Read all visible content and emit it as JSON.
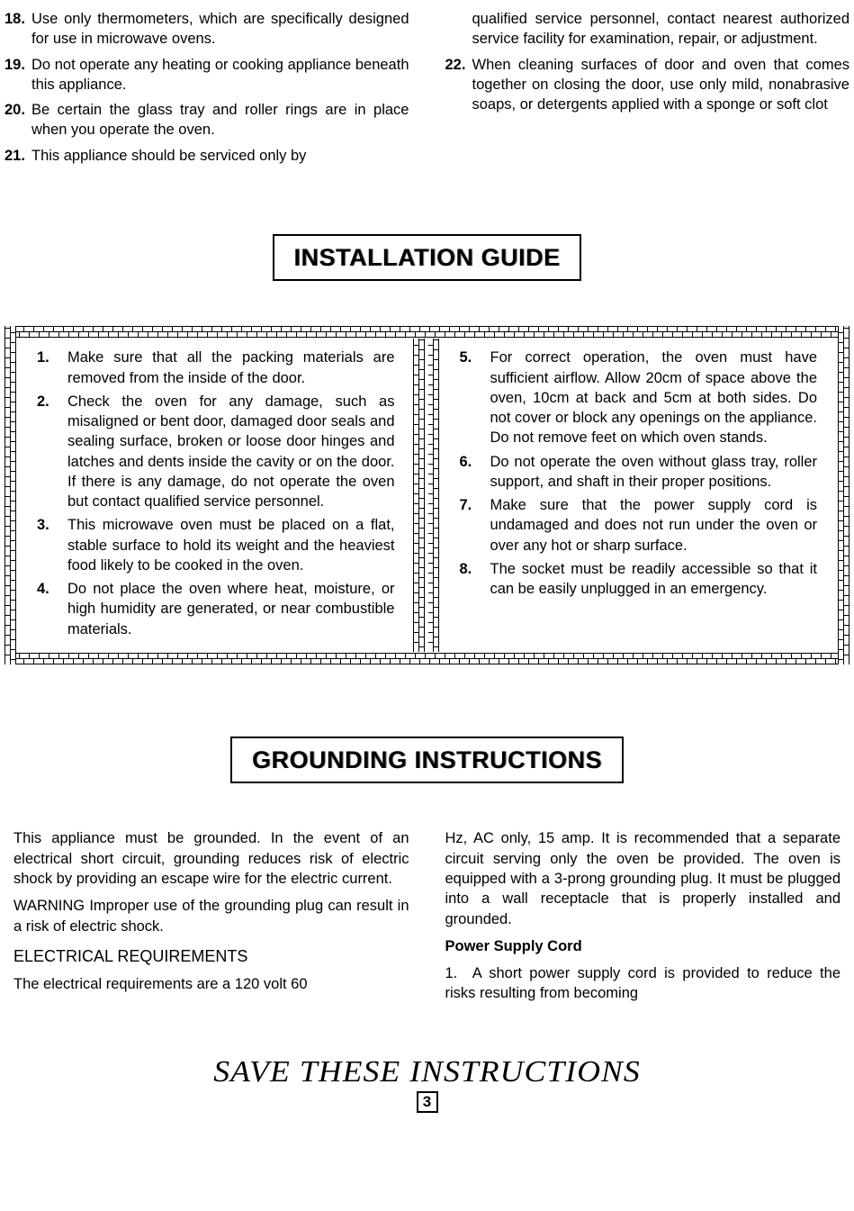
{
  "top_left": [
    {
      "num": "18.",
      "text": "Use only thermometers, which are specifically designed for use in microwave ovens."
    },
    {
      "num": "19.",
      "text": "Do not operate any heating or cooking appliance beneath this appliance."
    },
    {
      "num": "20.",
      "text": "Be certain the glass tray and roller rings are in place when you operate the oven."
    },
    {
      "num": "21.",
      "text": "This appliance should be serviced only by"
    }
  ],
  "top_right_cont": "qualified service personnel, contact nearest authorized service facility for examination, repair, or adjustment.",
  "top_right": [
    {
      "num": "22.",
      "text": "When cleaning surfaces of door and oven that comes together on closing the door, use only mild, nonabrasive soaps, or detergents applied with a sponge or soft clot"
    }
  ],
  "install_title": "INSTALLATION GUIDE",
  "install_left": [
    {
      "num": "1.",
      "text": "Make sure that all the packing materials are removed from the inside of the door."
    },
    {
      "num": "2.",
      "text": "Check the oven for any damage, such as misaligned or bent door, damaged door seals and sealing surface, broken or loose door hinges and latches and dents inside the cavity or on the door. If there is any damage, do not operate the oven but contact qualified service personnel."
    },
    {
      "num": "3.",
      "text": "This microwave oven must be placed on a flat, stable surface to hold its weight and the heaviest food likely to be cooked in the oven."
    },
    {
      "num": "4.",
      "text": "Do not place the oven where heat, moisture, or high humidity are generated, or near combustible materials."
    }
  ],
  "install_right": [
    {
      "num": "5.",
      "text": "For correct operation, the oven must have sufficient airflow. Allow 20cm of space above the oven, 10cm at back and 5cm at both sides. Do not cover or block any openings on the appliance. Do not remove feet on which oven stands."
    },
    {
      "num": "6.",
      "text": "Do not operate the oven without glass tray, roller support, and shaft in their proper positions."
    },
    {
      "num": "7.",
      "text": "Make sure that the power supply cord is undamaged and does not run under the oven or over any hot or sharp surface."
    },
    {
      "num": "8.",
      "text": "The socket must be readily accessible so that it can be easily unplugged in an emergency."
    }
  ],
  "ground_title": "GROUNDING INSTRUCTIONS",
  "ground_left_p1": "This appliance must be grounded. In the event of an electrical short circuit, grounding reduces risk of electric shock by providing an escape wire for the electric current.",
  "ground_left_p2": "WARNING Improper use of the grounding plug can result in a risk of electric shock.",
  "elec_req_head": "ELECTRICAL REQUIREMENTS",
  "ground_left_p3": "The electrical requirements are a 120 volt 60",
  "ground_right_p1": "Hz, AC only, 15 amp. It is recommended that a separate circuit serving only the oven be provided. The oven is equipped with a 3-prong grounding plug. It must be plugged into a wall receptacle that is properly installed and grounded.",
  "power_cord_head": "Power Supply Cord",
  "ground_right_p2": "1. A short power supply cord is provided to reduce the risks resulting from becoming",
  "save_text": "SAVE THESE INSTRUCTIONS",
  "page_num": "3"
}
